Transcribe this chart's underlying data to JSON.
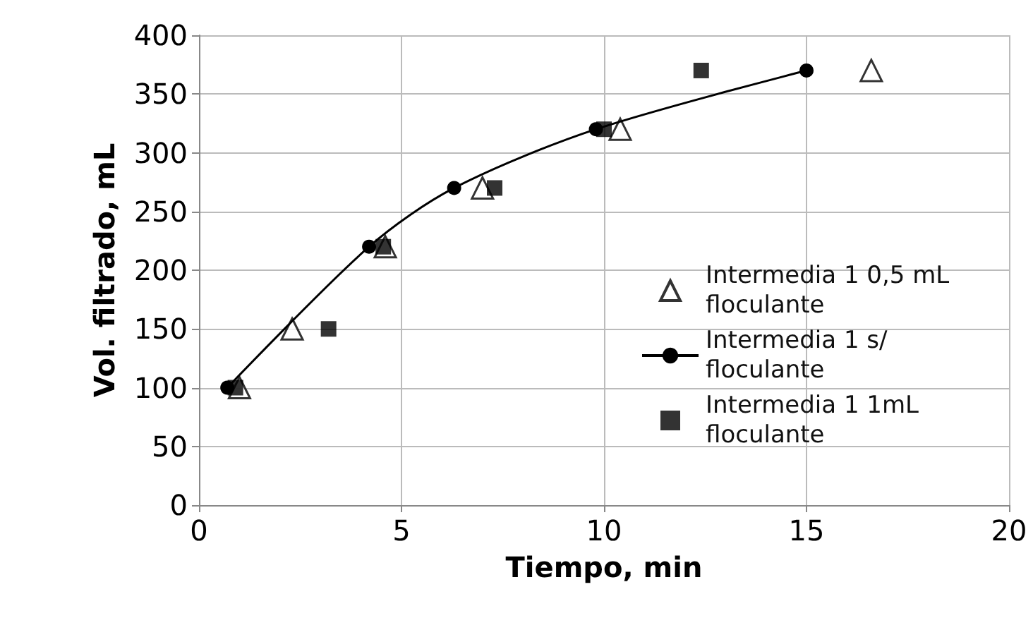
{
  "chart_data": {
    "type": "scatter",
    "xlabel": "Tiempo, min",
    "ylabel": "Vol. filtrado, mL",
    "xlim": [
      0,
      20
    ],
    "xticks": [
      0,
      5,
      10,
      15,
      20
    ],
    "ylim": [
      0,
      400
    ],
    "yticks": [
      0,
      50,
      100,
      150,
      200,
      250,
      300,
      350,
      400
    ],
    "grid": true,
    "legend": "bottom right",
    "series": [
      {
        "name": "Intermedia 1 0,5 mL floculante",
        "marker": "triangle",
        "color": "#000000",
        "x": [
          1.0,
          2.3,
          4.6,
          7.0,
          10.4,
          16.6
        ],
        "values": [
          100,
          150,
          220,
          270,
          320,
          370
        ]
      },
      {
        "name": "Intermedia 1 s/floculante",
        "type": "line",
        "marker": "circle",
        "color": "#000000",
        "x": [
          0.7,
          4.2,
          6.3,
          9.8,
          15.0
        ],
        "values": [
          100,
          220,
          270,
          320,
          370
        ]
      },
      {
        "name": "Intermedia 1 1mL floculante",
        "marker": "square",
        "color": "#000000",
        "x": [
          0.9,
          3.2,
          4.55,
          7.3,
          10.0,
          12.4
        ],
        "values": [
          100,
          150,
          220,
          270,
          320,
          370
        ]
      }
    ]
  }
}
